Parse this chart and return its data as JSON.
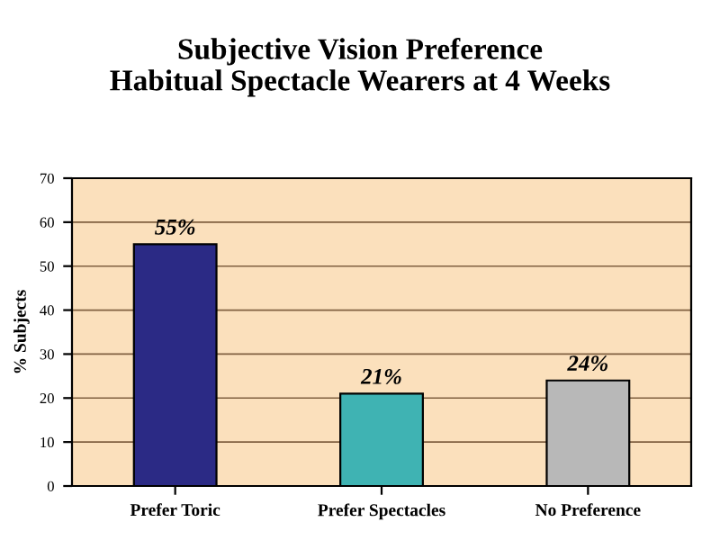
{
  "chart_data": {
    "type": "bar",
    "title": "Subjective Vision Preference\nHabitual Spectacle Wearers at 4 Weeks",
    "ylabel": "% Subjects",
    "categories": [
      "Prefer Toric",
      "Prefer Spectacles",
      "No Preference"
    ],
    "values": [
      55,
      21,
      24
    ],
    "colors": [
      "#2b2a85",
      "#3fb3b3",
      "#b8b8b8"
    ],
    "value_labels": [
      "55%",
      "21%",
      "24%"
    ],
    "ylim": [
      0,
      70
    ],
    "yticks": [
      0,
      10,
      20,
      30,
      40,
      50,
      60,
      70
    ],
    "grid": "y",
    "legend": false
  }
}
